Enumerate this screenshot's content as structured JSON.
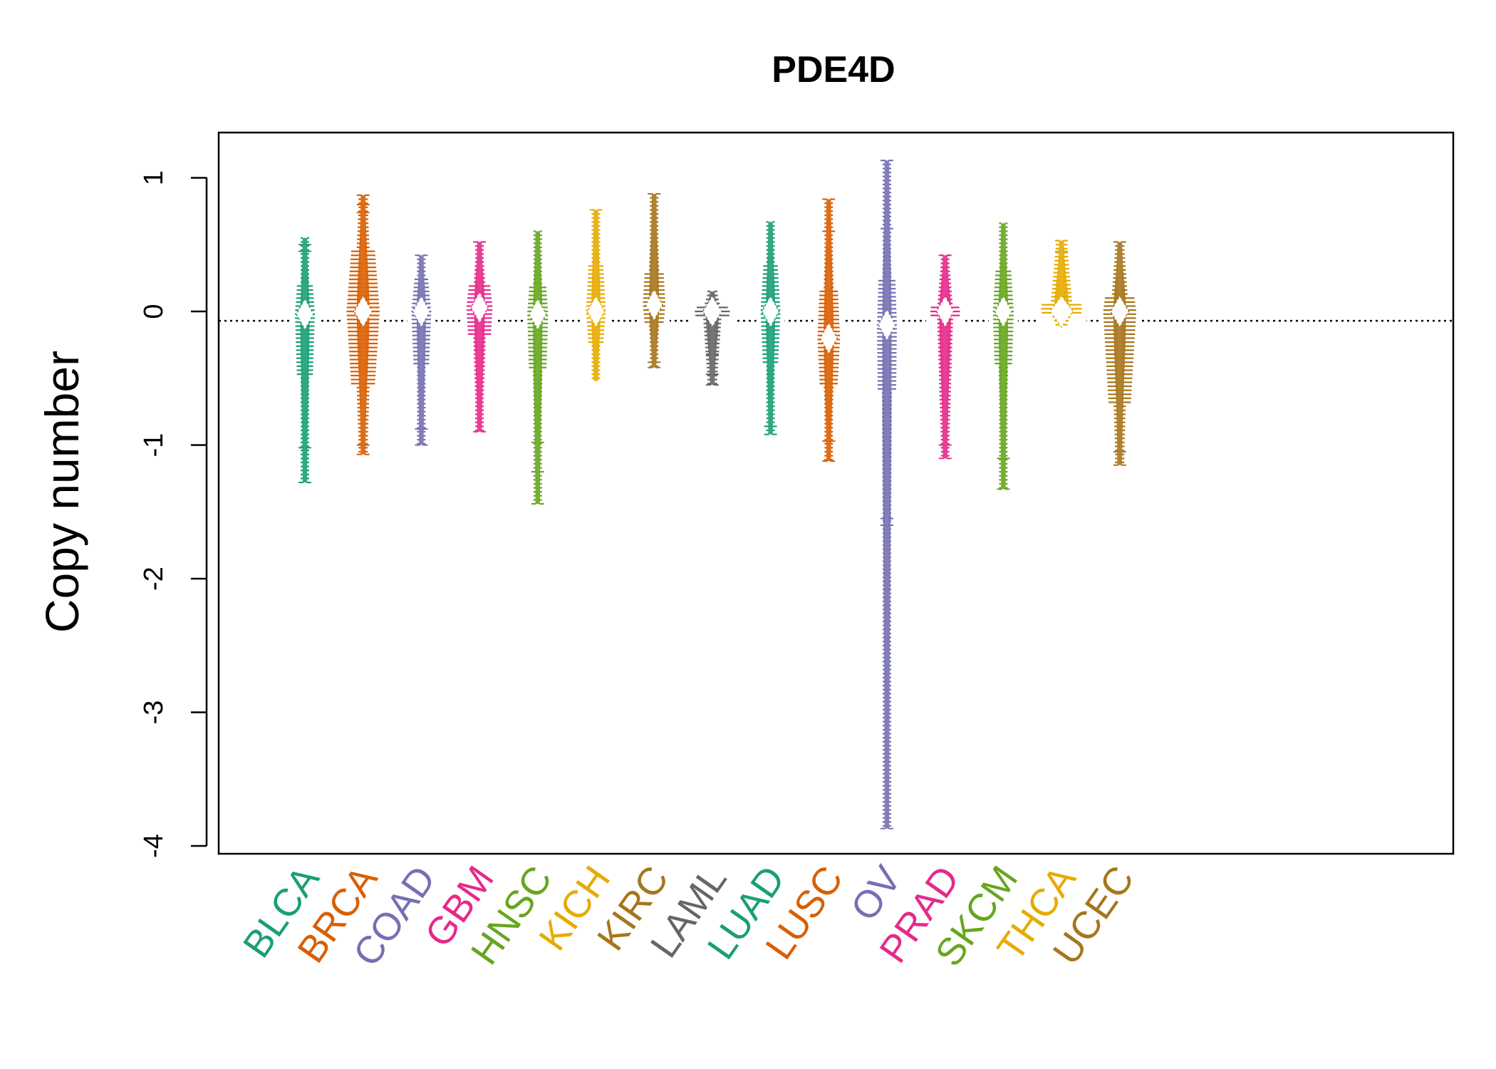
{
  "chart_data": {
    "type": "violin",
    "title": "PDE4D",
    "xlabel": "",
    "ylabel": "Copy number",
    "ylim": [
      -4.05,
      1.35
    ],
    "yticks": [
      1,
      0,
      -1,
      -2,
      -3,
      -4
    ],
    "ytick_labels": [
      "1",
      "0",
      "-1",
      "-2",
      "-3",
      "-4"
    ],
    "reference_line": -0.07,
    "grid": false,
    "legend": "none",
    "categories": [
      {
        "name": "BLCA",
        "color": "#1b9e77",
        "max": 0.55,
        "min": -1.28,
        "median": -0.02,
        "q1": -0.5,
        "q3": 0.2,
        "width": 0.22,
        "outliers": [
          0.45,
          0.5,
          -1.02,
          -1.28
        ]
      },
      {
        "name": "BRCA",
        "color": "#d95f02",
        "max": 0.87,
        "min": -1.07,
        "median": 0.0,
        "q1": -0.55,
        "q3": 0.45,
        "width": 0.38,
        "outliers": [
          0.74,
          0.8,
          0.87,
          -1.0,
          -1.07
        ]
      },
      {
        "name": "COAD",
        "color": "#7570b3",
        "max": 0.42,
        "min": -1.0,
        "median": 0.0,
        "q1": -0.4,
        "q3": 0.25,
        "width": 0.22,
        "outliers": [
          0.42,
          -0.88,
          -1.0
        ]
      },
      {
        "name": "GBM",
        "color": "#e7298a",
        "max": 0.52,
        "min": -0.9,
        "median": 0.03,
        "q1": -0.2,
        "q3": 0.2,
        "width": 0.3,
        "outliers": [
          0.52,
          -0.9
        ]
      },
      {
        "name": "HNSC",
        "color": "#66a61e",
        "max": 0.6,
        "min": -1.44,
        "median": -0.02,
        "q1": -0.45,
        "q3": 0.2,
        "width": 0.24,
        "outliers": [
          -0.98,
          -1.2,
          -1.44
        ]
      },
      {
        "name": "KICH",
        "color": "#e6ab02",
        "max": 0.76,
        "min": -0.52,
        "median": 0.0,
        "q1": -0.25,
        "q3": 0.35,
        "width": 0.2,
        "outliers": [
          0.76
        ]
      },
      {
        "name": "KIRC",
        "color": "#a6761d",
        "max": 0.88,
        "min": -0.42,
        "median": 0.05,
        "q1": -0.1,
        "q3": 0.3,
        "width": 0.26,
        "outliers": [
          0.88,
          -0.38,
          -0.42
        ]
      },
      {
        "name": "LAML",
        "color": "#666666",
        "max": 0.15,
        "min": -0.55,
        "median": 0.0,
        "q1": -0.05,
        "q3": 0.05,
        "width": 0.4,
        "outliers": [
          -0.32,
          -0.47,
          -0.55
        ]
      },
      {
        "name": "LUAD",
        "color": "#1b9e77",
        "max": 0.67,
        "min": -0.92,
        "median": 0.0,
        "q1": -0.4,
        "q3": 0.35,
        "width": 0.22,
        "outliers": [
          -0.86,
          -0.92
        ]
      },
      {
        "name": "LUSC",
        "color": "#d95f02",
        "max": 0.84,
        "min": -1.12,
        "median": -0.2,
        "q1": -0.55,
        "q3": 0.15,
        "width": 0.26,
        "outliers": [
          0.84,
          0.6,
          -0.97,
          -1.12
        ]
      },
      {
        "name": "OV",
        "color": "#7570b3",
        "max": 1.13,
        "min": -3.87,
        "median": -0.1,
        "q1": -0.6,
        "q3": 0.25,
        "width": 0.2,
        "outliers": [
          1.13,
          0.62,
          -1.55,
          -1.6,
          -3.87
        ]
      },
      {
        "name": "PRAD",
        "color": "#e7298a",
        "max": 0.42,
        "min": -1.1,
        "median": 0.0,
        "q1": -0.05,
        "q3": 0.05,
        "width": 0.34,
        "outliers": [
          0.42,
          -1.0,
          -1.1
        ]
      },
      {
        "name": "SKCM",
        "color": "#66a61e",
        "max": 0.66,
        "min": -1.33,
        "median": 0.0,
        "q1": -0.4,
        "q3": 0.3,
        "width": 0.24,
        "outliers": [
          -1.1,
          -1.33
        ]
      },
      {
        "name": "THCA",
        "color": "#e6ab02",
        "max": 0.53,
        "min": -0.1,
        "median": 0.0,
        "q1": -0.03,
        "q3": 0.05,
        "width": 0.48,
        "outliers": [
          0.53,
          0.45
        ]
      },
      {
        "name": "UCEC",
        "color": "#a6761d",
        "max": 0.52,
        "min": -1.15,
        "median": 0.0,
        "q1": -0.7,
        "q3": 0.1,
        "width": 0.38,
        "outliers": [
          0.52,
          -1.05,
          -1.15
        ]
      }
    ]
  }
}
